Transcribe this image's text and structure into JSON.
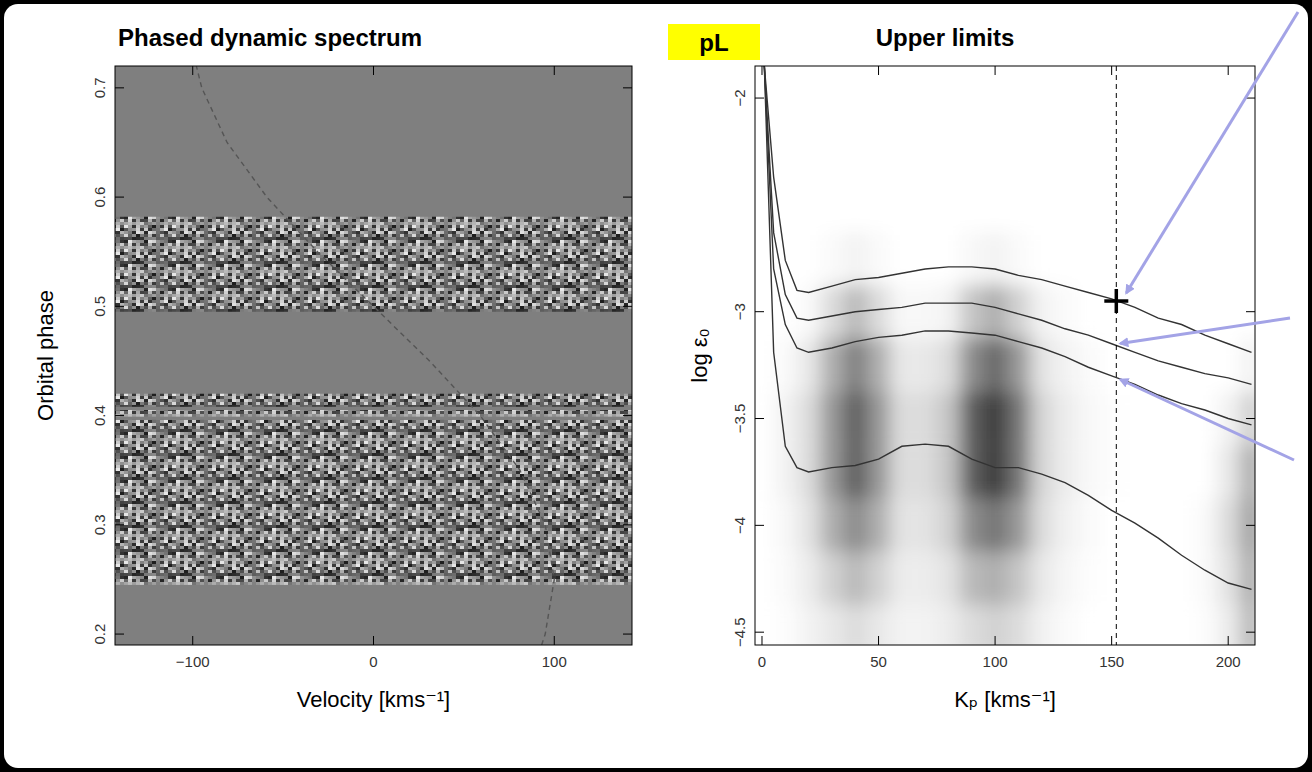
{
  "badge": "pL",
  "chart_data": [
    {
      "type": "line",
      "title": "Phased dynamic spectrum",
      "xlabel": "Velocity [kms⁻¹]",
      "ylabel": "Orbital phase",
      "xlim": [
        -143,
        143
      ],
      "ylim": [
        0.19,
        0.72
      ],
      "xticks": [
        {
          "value": -100,
          "label": "−100"
        },
        0,
        100
      ],
      "yticks": [
        0.2,
        0.3,
        0.4,
        0.5,
        0.6,
        0.7
      ],
      "grid": false,
      "observed_phases": [
        [
          0.245,
          0.396
        ],
        [
          0.399,
          0.405
        ],
        [
          0.408,
          0.42
        ],
        [
          0.495,
          0.582
        ]
      ],
      "series": [
        {
          "color": "#555555",
          "line_style": "dashed",
          "x": [
            93,
            95,
            100,
            95,
            81,
            59,
            31,
            0,
            -31,
            -59,
            -81,
            -95,
            -98
          ],
          "values": [
            0.19,
            0.2,
            0.25,
            0.3,
            0.35,
            0.4,
            0.45,
            0.5,
            0.55,
            0.6,
            0.65,
            0.7,
            0.72
          ]
        }
      ]
    },
    {
      "type": "contour",
      "title": "Upper limits",
      "xlabel": "Kₚ [kms⁻¹]",
      "ylabel": "log ε₀",
      "xlim": [
        -3,
        211.5
      ],
      "ylim": [
        -4.56,
        -1.85
      ],
      "xticks": [
        0,
        50,
        100,
        150,
        200
      ],
      "yticks": [
        {
          "value": -2,
          "label": "−2"
        },
        {
          "value": -3,
          "label": "−3"
        },
        {
          "value": -3.5,
          "label": "−3.5"
        },
        {
          "value": -4,
          "label": "−4"
        },
        {
          "value": -4.5,
          "label": "−4.5"
        }
      ],
      "grid": false,
      "x": [
        1,
        5,
        10,
        15,
        20,
        30,
        40,
        50,
        60,
        70,
        80,
        90,
        100,
        110,
        120,
        130,
        140,
        150,
        160,
        170,
        180,
        190,
        200,
        210
      ],
      "series": [
        {
          "color": "#333333",
          "line_style": "solid",
          "values": [
            -1.85,
            -2.37,
            -2.76,
            -2.9,
            -2.91,
            -2.88,
            -2.85,
            -2.84,
            -2.82,
            -2.8,
            -2.79,
            -2.79,
            -2.8,
            -2.83,
            -2.85,
            -2.88,
            -2.91,
            -2.94,
            -2.98,
            -3.03,
            -3.06,
            -3.11,
            -3.15,
            -3.19
          ]
        },
        {
          "color": "#333333",
          "line_style": "solid",
          "values": [
            -1.85,
            -2.63,
            -2.92,
            -3.03,
            -3.04,
            -3.02,
            -3.0,
            -2.99,
            -2.98,
            -2.96,
            -2.96,
            -2.96,
            -2.98,
            -3.01,
            -3.04,
            -3.08,
            -3.11,
            -3.15,
            -3.19,
            -3.23,
            -3.26,
            -3.29,
            -3.31,
            -3.34
          ]
        },
        {
          "color": "#333333",
          "line_style": "solid",
          "values": [
            -1.85,
            -2.8,
            -3.06,
            -3.17,
            -3.19,
            -3.17,
            -3.14,
            -3.12,
            -3.11,
            -3.09,
            -3.09,
            -3.1,
            -3.11,
            -3.14,
            -3.17,
            -3.21,
            -3.26,
            -3.3,
            -3.34,
            -3.39,
            -3.43,
            -3.46,
            -3.5,
            -3.53
          ]
        },
        {
          "color": "#333333",
          "line_style": "solid",
          "values": [
            -1.85,
            -3.19,
            -3.63,
            -3.73,
            -3.75,
            -3.73,
            -3.72,
            -3.69,
            -3.63,
            -3.62,
            -3.63,
            -3.69,
            -3.73,
            -3.73,
            -3.76,
            -3.8,
            -3.86,
            -3.93,
            -3.99,
            -4.06,
            -4.14,
            -4.21,
            -4.27,
            -4.3
          ]
        }
      ],
      "reference_line": {
        "x": 152,
        "line_style": "dashed"
      },
      "highlight": {
        "x": 152,
        "y": -2.95,
        "marker": "plus"
      },
      "cell_x": [
        0,
        10,
        20,
        30,
        40,
        50,
        60,
        70,
        80,
        90,
        100,
        110,
        120,
        130,
        140,
        150,
        160,
        170,
        180,
        190,
        200,
        210
      ],
      "cell_y": [
        -2,
        -2.25,
        -2.5,
        -2.75,
        -3,
        -3.25,
        -3.5,
        -3.75,
        -4,
        -4.25,
        -4.5
      ],
      "cell_range": [
        0,
        1
      ],
      "cells": [
        [
          0,
          0,
          0,
          0,
          0,
          0,
          0,
          0,
          0,
          0,
          0,
          0,
          0,
          0,
          0,
          0,
          0,
          0,
          0,
          0,
          0,
          0
        ],
        [
          0,
          0,
          0,
          0,
          0,
          0,
          0,
          0,
          0,
          0,
          0,
          0,
          0,
          0,
          0,
          0,
          0,
          0,
          0,
          0,
          0,
          0
        ],
        [
          0,
          0,
          0,
          0,
          0,
          0,
          0,
          0,
          0,
          0,
          0,
          0,
          0,
          0,
          0,
          0,
          0,
          0,
          0,
          0,
          0,
          0
        ],
        [
          0,
          0,
          0,
          0.02,
          0.05,
          0.02,
          0,
          0,
          0,
          0.03,
          0.05,
          0.02,
          0,
          0,
          0,
          0,
          0,
          0,
          0,
          0,
          0,
          0
        ],
        [
          0,
          0,
          0.02,
          0.15,
          0.3,
          0.15,
          0.03,
          0.03,
          0.05,
          0.25,
          0.35,
          0.2,
          0.05,
          0.02,
          0,
          0,
          0,
          0,
          0,
          0,
          0,
          0
        ],
        [
          0,
          0.02,
          0.1,
          0.35,
          0.55,
          0.35,
          0.1,
          0.1,
          0.15,
          0.5,
          0.65,
          0.45,
          0.12,
          0.05,
          0.02,
          0,
          0,
          0,
          0,
          0,
          0,
          0.05
        ],
        [
          0,
          0.05,
          0.15,
          0.45,
          0.7,
          0.45,
          0.15,
          0.15,
          0.25,
          0.7,
          0.85,
          0.6,
          0.18,
          0.08,
          0.03,
          0.01,
          0,
          0,
          0,
          0,
          0.05,
          0.2
        ],
        [
          0,
          0.05,
          0.15,
          0.45,
          0.7,
          0.45,
          0.15,
          0.15,
          0.25,
          0.7,
          0.85,
          0.6,
          0.18,
          0.08,
          0.03,
          0.01,
          0,
          0,
          0,
          0,
          0.1,
          0.35
        ],
        [
          0,
          0.03,
          0.12,
          0.35,
          0.5,
          0.35,
          0.12,
          0.12,
          0.2,
          0.5,
          0.6,
          0.45,
          0.15,
          0.06,
          0.02,
          0,
          0,
          0,
          0,
          0.02,
          0.15,
          0.4
        ],
        [
          0,
          0.02,
          0.08,
          0.2,
          0.3,
          0.2,
          0.08,
          0.08,
          0.12,
          0.3,
          0.35,
          0.25,
          0.1,
          0.04,
          0.01,
          0,
          0,
          0,
          0,
          0.02,
          0.12,
          0.35
        ],
        [
          0,
          0.01,
          0.05,
          0.1,
          0.15,
          0.1,
          0.05,
          0.05,
          0.08,
          0.15,
          0.2,
          0.15,
          0.06,
          0.02,
          0,
          0,
          0,
          0,
          0,
          0.01,
          0.08,
          0.3
        ]
      ]
    }
  ]
}
